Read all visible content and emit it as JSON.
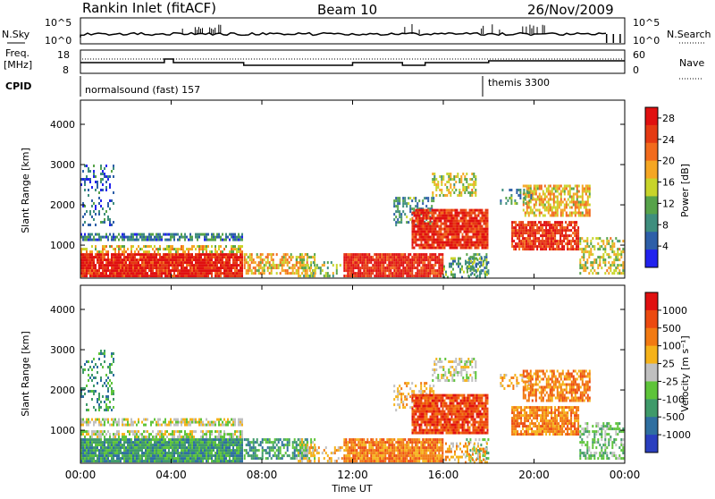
{
  "header": {
    "station": "Rankin Inlet (fitACF)",
    "beam": "Beam 10",
    "date": "26/Nov/2009"
  },
  "strips": {
    "nsky_label": "N.Sky",
    "nsky_ticks": [
      "10^5",
      "10^0"
    ],
    "nsearch_label": "N.Search",
    "nsearch_ticks": [
      "10^5",
      "10^0"
    ],
    "freq_label_1": "Freq.",
    "freq_label_2": "[MHz]",
    "freq_ticks": [
      "18",
      "8"
    ],
    "nave_label": "Nave",
    "nave_ticks": [
      "60",
      "0"
    ],
    "cpid_label": "CPID",
    "cpid_segments": [
      {
        "text": "normalsound (fast) 157",
        "start_hour": 0
      },
      {
        "text": "themis 3300",
        "start_hour": 18.0
      }
    ]
  },
  "chart_data": [
    {
      "type": "heatmap",
      "panel": "power",
      "ylabel": "Slant Range [km]",
      "xlabel": "Time UT",
      "ylim": [
        180,
        4600
      ],
      "xlim_hours": [
        0,
        24
      ],
      "y_ticks": [
        "1000",
        "2000",
        "3000",
        "4000"
      ],
      "x_ticks": [
        "00:00",
        "04:00",
        "08:00",
        "12:00",
        "16:00",
        "20:00",
        "00:00"
      ],
      "colorbar_label": "Power [dB]",
      "colorbar_ticks": [
        "4",
        "8",
        "12",
        "16",
        "20",
        "24",
        "28"
      ],
      "colorbar_range": [
        0,
        30
      ],
      "colorbar_colors": [
        "#2222ee",
        "#2e5fa8",
        "#3f8e7e",
        "#57a34a",
        "#c8d42a",
        "#f5a623",
        "#f26b1d",
        "#e53a13",
        "#e01010"
      ]
    },
    {
      "type": "heatmap",
      "panel": "velocity",
      "ylabel": "Slant Range [km]",
      "xlabel": "Time UT",
      "ylim": [
        180,
        4600
      ],
      "xlim_hours": [
        0,
        24
      ],
      "y_ticks": [
        "1000",
        "2000",
        "3000",
        "4000"
      ],
      "x_ticks": [
        "00:00",
        "04:00",
        "08:00",
        "12:00",
        "16:00",
        "20:00",
        "00:00"
      ],
      "colorbar_label": "Velocity [m s⁻¹]",
      "colorbar_ticks": [
        "1000",
        "500",
        "100",
        "25",
        "-25",
        "-100",
        "-500",
        "-1000"
      ],
      "colorbar_colors": [
        "#2a3fbf",
        "#2f6fa0",
        "#3f9a6a",
        "#5ec43a",
        "#c0c0c0",
        "#f5b21a",
        "#f27a12",
        "#ec4a10",
        "#e01010"
      ]
    }
  ],
  "x_axis_title": "Time UT"
}
